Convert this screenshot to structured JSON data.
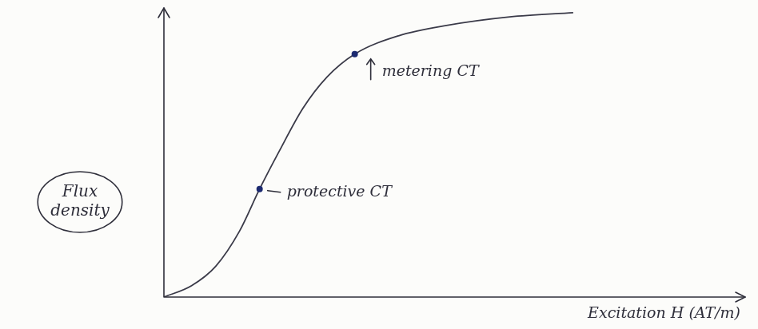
{
  "chart_data": {
    "type": "line",
    "x_label": "Excitation H (AT/m)",
    "y_label": "Flux density",
    "x": [
      0,
      4.8,
      9,
      13.1,
      16.6,
      20,
      24.1,
      28.3,
      33.1,
      40.7,
      49,
      60,
      71
    ],
    "values": [
      0,
      4,
      10.8,
      23,
      37.8,
      51,
      66,
      77,
      85,
      91.4,
      95,
      98,
      99.5
    ],
    "color": "#3a3a48",
    "xlim": [
      0,
      100
    ],
    "ylim": [
      0,
      100
    ],
    "xticks": [],
    "yticks": [],
    "tick_labels": false,
    "grid": false,
    "annotations": [
      {
        "text": "protective CT",
        "x": 16.6,
        "y": 37.8
      },
      {
        "text": "metering CT",
        "x": 33.1,
        "y": 85
      }
    ]
  }
}
